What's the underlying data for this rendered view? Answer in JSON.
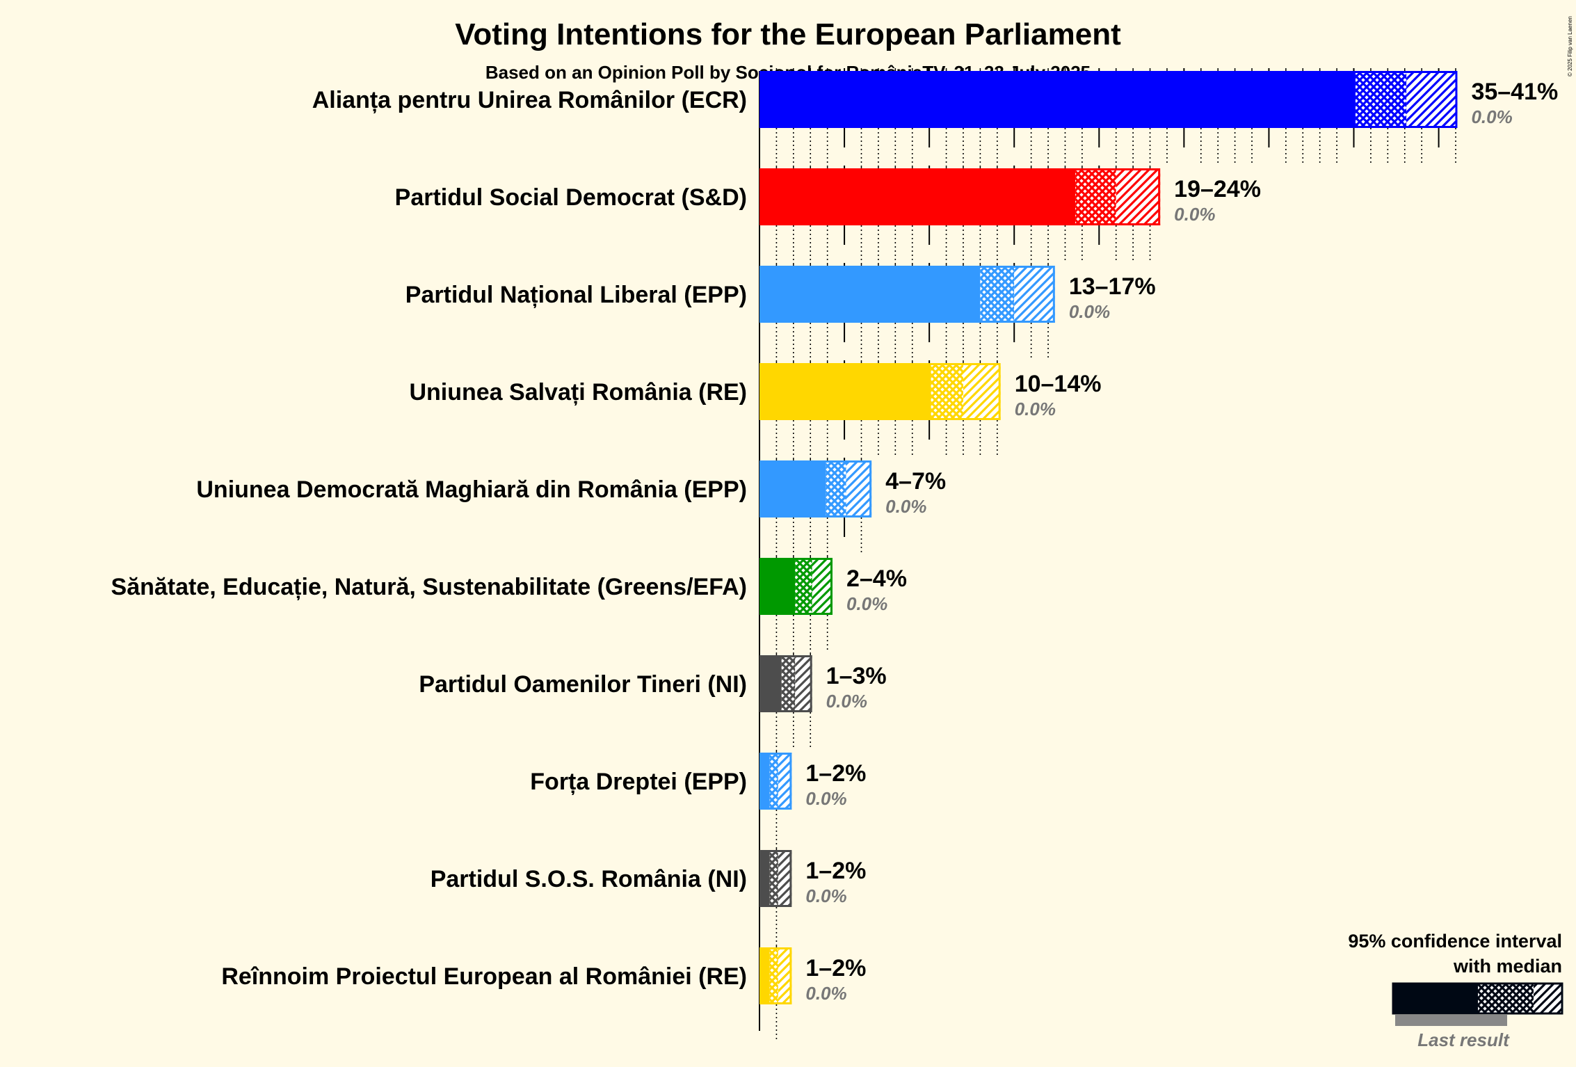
{
  "title": "Voting Intentions for the European Parliament",
  "subtitle": "Based on an Opinion Poll by Sociopol for RomâniaTV, 21–23 July 2025",
  "copyright": "© 2025 Filip van Laenen",
  "legend": {
    "line1": "95% confidence interval",
    "line2": "with median",
    "last_result": "Last result",
    "color": "#000814"
  },
  "chart_data": {
    "type": "bar",
    "orientation": "horizontal",
    "unit": "%",
    "categories": [
      "Alianța pentru Unirea Românilor (ECR)",
      "Partidul Social Democrat (S&D)",
      "Partidul Național Liberal (EPP)",
      "Uniunea Salvați România (RE)",
      "Uniunea Democrată Maghiară din România (EPP)",
      "Sănătate, Educație, Natură, Sustenabilitate (Greens/EFA)",
      "Partidul Oamenilor Tineri (NI)",
      "Forța Dreptei (EPP)",
      "Partidul S.O.S. România (NI)",
      "Reînnoim Proiectul European al României (RE)"
    ],
    "series": [
      {
        "label": "Alianța pentru Unirea Românilor (ECR)",
        "color": "#0000FF",
        "low": 35.1,
        "median": 38.1,
        "high": 41.1,
        "range_label": "35–41%",
        "last_result": "0.0%",
        "last_value": 0.0
      },
      {
        "label": "Partidul Social Democrat (S&D)",
        "color": "#FF0000",
        "low": 18.6,
        "median": 21.0,
        "high": 23.6,
        "range_label": "19–24%",
        "last_result": "0.0%",
        "last_value": 0.0
      },
      {
        "label": "Partidul Național Liberal (EPP)",
        "color": "#3399FF",
        "low": 13.0,
        "median": 15.0,
        "high": 17.4,
        "range_label": "13–17%",
        "last_result": "0.0%",
        "last_value": 0.0
      },
      {
        "label": "Uniunea Salvați România (RE)",
        "color": "#FFD700",
        "low": 10.1,
        "median": 12.0,
        "high": 14.2,
        "range_label": "10–14%",
        "last_result": "0.0%",
        "last_value": 0.0
      },
      {
        "label": "Uniunea Democrată Maghiară din România (EPP)",
        "color": "#3399FF",
        "low": 3.9,
        "median": 5.1,
        "high": 6.6,
        "range_label": "4–7%",
        "last_result": "0.0%",
        "last_value": 0.0
      },
      {
        "label": "Sănătate, Educație, Natură, Sustenabilitate (Greens/EFA)",
        "color": "#009900",
        "low": 2.1,
        "median": 3.1,
        "high": 4.3,
        "range_label": "2–4%",
        "last_result": "0.0%",
        "last_value": 0.0
      },
      {
        "label": "Partidul Oamenilor Tineri (NI)",
        "color": "#4D4D4D",
        "low": 1.3,
        "median": 2.1,
        "high": 3.1,
        "range_label": "1–3%",
        "last_result": "0.0%",
        "last_value": 0.0
      },
      {
        "label": "Forța Dreptei (EPP)",
        "color": "#3399FF",
        "low": 0.6,
        "median": 1.1,
        "high": 1.9,
        "range_label": "1–2%",
        "last_result": "0.0%",
        "last_value": 0.0
      },
      {
        "label": "Partidul S.O.S. România (NI)",
        "color": "#4D4D4D",
        "low": 0.6,
        "median": 1.1,
        "high": 1.9,
        "range_label": "1–2%",
        "last_result": "0.0%",
        "last_value": 0.0
      },
      {
        "label": "Reînnoim Proiectul European al României (RE)",
        "color": "#FFD700",
        "low": 0.6,
        "median": 1.1,
        "high": 1.9,
        "range_label": "1–2%",
        "last_result": "0.0%",
        "last_value": 0.0
      }
    ],
    "xlim": [
      0,
      41
    ],
    "major_tick_step": 5,
    "minor_tick_step": 1,
    "grid": true,
    "legend_position": "bottom-right"
  }
}
